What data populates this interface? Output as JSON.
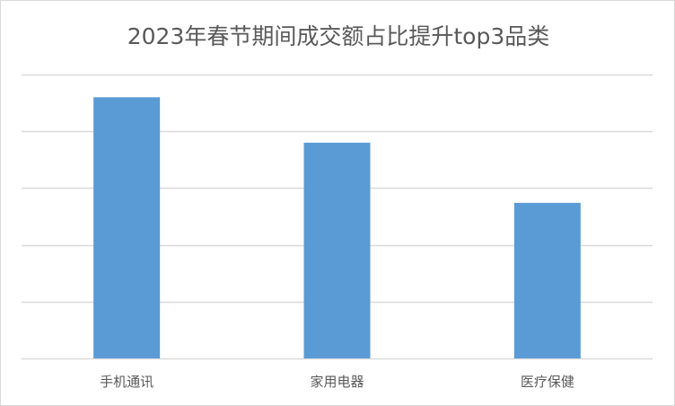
{
  "chart_data": {
    "type": "bar",
    "title": "2023年春节期间成交额占比提升top3品类",
    "categories": [
      "手机通讯",
      "家用电器",
      "医疗保健"
    ],
    "values": [
      4.6,
      3.8,
      2.74
    ],
    "ylim": [
      0,
      5
    ],
    "grid": true,
    "y_tick_labels_shown": false,
    "legend": "none",
    "bar_color": "#5b9bd5",
    "grid_color": "#d9d9d9"
  }
}
